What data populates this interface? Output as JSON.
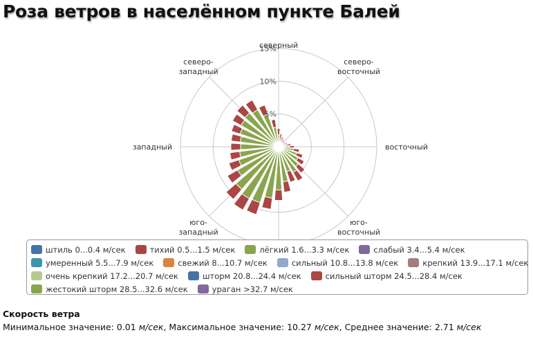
{
  "title": "Роза ветров в населённом пункте Балей",
  "chart_data": {
    "type": "polar-stacked-bar",
    "directions": [
      "северный",
      "северо-восточный",
      "восточный",
      "юго-восточный",
      "южный",
      "юго-западный",
      "западный",
      "северо-западный"
    ],
    "direction_label_lines": [
      [
        "северный"
      ],
      [
        "северо-",
        "восточный"
      ],
      [
        "восточный"
      ],
      [
        "юго-",
        "восточный"
      ],
      [
        "южный"
      ],
      [
        "юго-",
        "западный"
      ],
      [
        "западный"
      ],
      [
        "северо-",
        "западный"
      ]
    ],
    "sectors": 32,
    "radial_max": 15,
    "radial_ticks": [
      "5%",
      "10%",
      "15%"
    ],
    "grid": true,
    "legend_position": "bottom",
    "series": [
      {
        "name": "штиль 0...0.4 м/сек",
        "color": "#4572A7",
        "values": []
      },
      {
        "name": "тихий 0.5...1.5 м/сек",
        "color": "#AA4643",
        "values": [
          1.0,
          0.9,
          0.8,
          0.7,
          0.6,
          0.6,
          0.6,
          0.7,
          0.8,
          0.9,
          1.0,
          1.1,
          1.3,
          1.5,
          1.7,
          1.6,
          1.6,
          1.7,
          1.9,
          2.0,
          2.0,
          1.8,
          1.6,
          1.5,
          1.5,
          1.4,
          1.4,
          1.5,
          1.6,
          1.7,
          1.5,
          1.2
        ]
      },
      {
        "name": "лёгкий 1.6...3.3 м/сек",
        "color": "#89A54E",
        "values": [
          1.2,
          0.5,
          0.3,
          0.2,
          0.2,
          0.2,
          0.3,
          0.6,
          1.0,
          1.7,
          2.3,
          2.8,
          3.4,
          3.9,
          3.4,
          4.8,
          6.0,
          7.3,
          8.4,
          8.5,
          8.0,
          6.6,
          5.8,
          5.4,
          5.2,
          5.3,
          5.6,
          6.0,
          6.2,
          5.9,
          4.6,
          2.4
        ]
      },
      {
        "name": "слабый 3.4...5.4 м/сек",
        "color": "#80699B",
        "values": [
          0.6,
          0.6,
          0.5,
          0.5,
          0.5,
          0.5,
          0.5,
          0.6,
          0.6,
          0.6,
          0.6,
          0.6,
          0.6,
          0.6,
          0.6,
          0.6,
          0.6,
          0.6,
          0.6,
          0.6,
          0.6,
          0.6,
          0.6,
          0.6,
          0.6,
          0.6,
          0.6,
          0.6,
          0.6,
          0.6,
          0.6,
          0.6
        ]
      },
      {
        "name": "умеренный 5.5...7.9 м/сек",
        "color": "#3D96AE",
        "values": []
      },
      {
        "name": "свежий 8...10.7 м/сек",
        "color": "#DB843D",
        "values": []
      },
      {
        "name": "сильный 10.8...13.8 м/сек",
        "color": "#92A8CD",
        "values": []
      },
      {
        "name": "крепкий 13.9...17.1 м/сек",
        "color": "#A47D7C",
        "values": []
      },
      {
        "name": "очень крепкий 17.2...20.7 м/сек",
        "color": "#B5CA92",
        "values": []
      },
      {
        "name": "шторм 20.8...24.4 м/сек",
        "color": "#4572A7",
        "values": []
      },
      {
        "name": "сильный шторм 24.5...28.4 м/сек",
        "color": "#AA4643",
        "values": []
      },
      {
        "name": "жестокий шторм 28.5...32.6 м/сек",
        "color": "#89A54E",
        "values": []
      },
      {
        "name": "ураган >32.7 м/сек",
        "color": "#80699B",
        "values": []
      }
    ]
  },
  "speed": {
    "title": "Скорость ветра",
    "min_label": "Минимальное значение: ",
    "min_value": "0.01",
    "max_label": ", Максимальное значение: ",
    "max_value": "10.27",
    "avg_label": ", Среднее значение: ",
    "avg_value": "2.71",
    "unit": "м/сек"
  }
}
